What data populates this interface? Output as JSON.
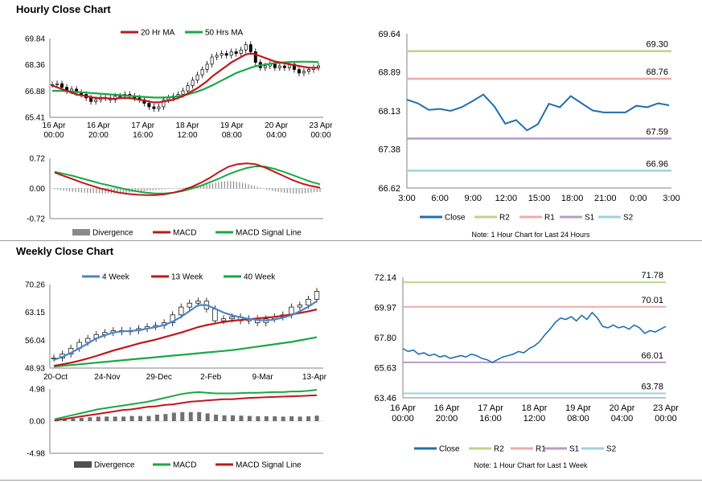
{
  "colors": {
    "red": "#c0171c",
    "green": "#19a845",
    "blue": "#1f6fb0",
    "gray": "#8a8a8a",
    "r2": "#bcd48a",
    "r1": "#f0aaaa",
    "s1": "#b89cc8",
    "s2": "#9cd2dc"
  },
  "hourly": {
    "title": "Hourly Close Chart",
    "price": {
      "legend": [
        "20 Hr MA",
        "50 Hrs MA"
      ],
      "y_ticks": [
        "69.84",
        "68.36",
        "66.88",
        "65.41"
      ],
      "y_min": 65.41,
      "y_max": 69.84,
      "x_tick_labels": [
        [
          "16 Apr",
          "00:00"
        ],
        [
          "16 Apr",
          "20:00"
        ],
        [
          "17 Apr",
          "16:00"
        ],
        [
          "18 Apr",
          "12:00"
        ],
        [
          "19 Apr",
          "08:00"
        ],
        [
          "20 Apr",
          "04:00"
        ],
        [
          "23 Apr",
          "00:00"
        ]
      ],
      "close": [
        67.25,
        67.3,
        67.1,
        66.9,
        67.0,
        66.8,
        66.7,
        66.5,
        66.3,
        66.4,
        66.5,
        66.5,
        66.4,
        66.6,
        66.6,
        66.7,
        66.6,
        66.5,
        66.4,
        66.2,
        66.0,
        65.9,
        66.0,
        66.4,
        66.5,
        66.6,
        66.7,
        66.9,
        67.2,
        67.5,
        67.8,
        68.1,
        68.4,
        68.8,
        68.9,
        69.0,
        68.9,
        69.1,
        69.0,
        69.2,
        69.5,
        69.1,
        68.5,
        68.2,
        68.3,
        68.4,
        68.2,
        68.3,
        68.2,
        68.4,
        68.1,
        67.9,
        68.0,
        68.1,
        68.2,
        68.3
      ],
      "ma20": [
        67.2,
        67.1,
        67.0,
        66.9,
        66.8,
        66.7,
        66.65,
        66.6,
        66.55,
        66.5,
        66.5,
        66.5,
        66.45,
        66.45,
        66.5,
        66.5,
        66.5,
        66.45,
        66.4,
        66.35,
        66.3,
        66.25,
        66.25,
        66.3,
        66.35,
        66.4,
        66.5,
        66.6,
        66.75,
        66.9,
        67.05,
        67.25,
        67.45,
        67.7,
        67.9,
        68.1,
        68.3,
        68.5,
        68.65,
        68.8,
        68.95,
        69.0,
        68.95,
        68.85,
        68.75,
        68.65,
        68.55,
        68.5,
        68.45,
        68.4,
        68.35,
        68.3,
        68.25,
        68.2,
        68.2,
        68.2
      ],
      "ma50": [
        66.9,
        66.9,
        66.9,
        66.88,
        66.86,
        66.84,
        66.82,
        66.8,
        66.78,
        66.76,
        66.74,
        66.72,
        66.7,
        66.68,
        66.66,
        66.64,
        66.62,
        66.6,
        66.58,
        66.56,
        66.54,
        66.52,
        66.52,
        66.52,
        66.54,
        66.56,
        66.6,
        66.64,
        66.7,
        66.78,
        66.86,
        66.96,
        67.08,
        67.2,
        67.34,
        67.48,
        67.62,
        67.76,
        67.9,
        68.0,
        68.1,
        68.2,
        68.28,
        68.34,
        68.38,
        68.42,
        68.45,
        68.48,
        68.5,
        68.52,
        68.53,
        68.54,
        68.54,
        68.54,
        68.53,
        68.52
      ]
    },
    "macd": {
      "legend": [
        "Divergence",
        "MACD",
        "MACD Signal Line"
      ],
      "y_ticks": [
        "0.72",
        "0.00",
        "-0.72"
      ],
      "y_min": -0.72,
      "y_max": 0.72,
      "macd": [
        0.38,
        0.3,
        0.22,
        0.14,
        0.07,
        0.0,
        -0.05,
        -0.1,
        -0.13,
        -0.15,
        -0.16,
        -0.16,
        -0.14,
        -0.1,
        -0.04,
        0.04,
        0.14,
        0.26,
        0.4,
        0.52,
        0.58,
        0.6,
        0.58,
        0.5,
        0.4,
        0.3,
        0.2,
        0.12,
        0.06,
        0.02
      ],
      "signal": [
        0.4,
        0.35,
        0.3,
        0.24,
        0.18,
        0.12,
        0.07,
        0.02,
        -0.03,
        -0.07,
        -0.1,
        -0.12,
        -0.12,
        -0.1,
        -0.06,
        0.0,
        0.07,
        0.15,
        0.24,
        0.34,
        0.42,
        0.49,
        0.53,
        0.52,
        0.47,
        0.4,
        0.32,
        0.24,
        0.16,
        0.1
      ],
      "divergence": [
        -0.02,
        -0.05,
        -0.08,
        -0.1,
        -0.11,
        -0.12,
        -0.12,
        -0.12,
        -0.1,
        -0.08,
        -0.06,
        -0.04,
        -0.02,
        0.0,
        0.02,
        0.04,
        0.07,
        0.11,
        0.16,
        0.18,
        0.16,
        0.11,
        0.05,
        -0.02,
        -0.07,
        -0.1,
        -0.12,
        -0.12,
        -0.1,
        -0.08
      ]
    },
    "pivot": {
      "y_ticks": [
        "69.64",
        "68.89",
        "68.13",
        "67.38",
        "66.62"
      ],
      "y_min": 66.62,
      "y_max": 69.64,
      "x_ticks": [
        "3:00",
        "6:00",
        "9:00",
        "12:00",
        "15:00",
        "18:00",
        "21:00",
        "0:00",
        "3:00"
      ],
      "levels": [
        {
          "name": "R2",
          "value": 69.3,
          "label": "69.30"
        },
        {
          "name": "R1",
          "value": 68.76,
          "label": "68.76"
        },
        {
          "name": "S1",
          "value": 67.59,
          "label": "67.59"
        },
        {
          "name": "S2",
          "value": 66.96,
          "label": "66.96"
        }
      ],
      "close": [
        68.35,
        68.28,
        68.15,
        68.17,
        68.13,
        68.2,
        68.32,
        68.45,
        68.22,
        67.88,
        67.95,
        67.75,
        67.87,
        68.27,
        68.2,
        68.42,
        68.28,
        68.14,
        68.1,
        68.1,
        68.1,
        68.23,
        68.2,
        68.28,
        68.24
      ],
      "legend": [
        "Close",
        "R2",
        "R1",
        "S1",
        "S2"
      ],
      "note": "Note: 1 Hour Chart for Last 24 Hours"
    }
  },
  "weekly": {
    "title": "Weekly Close Chart",
    "price": {
      "legend": [
        "4 Week",
        "13 Week",
        "40 Week"
      ],
      "y_ticks": [
        "70.26",
        "63.15",
        "56.04",
        "48.93"
      ],
      "y_min": 48.93,
      "y_max": 70.26,
      "x_tick_labels": [
        "20-Oct",
        "24-Nov",
        "29-Dec",
        "2-Feb",
        "9-Mar",
        "13-Apr"
      ],
      "close": [
        51.5,
        52.5,
        54.0,
        55.5,
        56.5,
        57.5,
        58.0,
        58.5,
        58.2,
        58.5,
        59.0,
        59.5,
        59.8,
        60.5,
        62.5,
        64.5,
        65.5,
        66.0,
        64.0,
        61.0,
        61.5,
        62.0,
        61.0,
        61.5,
        60.5,
        61.5,
        62.0,
        62.5,
        64.5,
        65.0,
        66.5,
        68.5
      ],
      "ma4": [
        51.0,
        51.8,
        52.8,
        54.0,
        55.2,
        56.5,
        57.3,
        58.0,
        58.3,
        58.4,
        58.6,
        59.0,
        59.4,
        59.9,
        60.8,
        62.0,
        63.5,
        65.0,
        65.0,
        64.1,
        63.1,
        62.4,
        61.9,
        61.5,
        61.2,
        61.1,
        61.3,
        61.8,
        62.4,
        63.4,
        64.6,
        66.0
      ],
      "ma13": [
        49.5,
        49.9,
        50.3,
        50.8,
        51.4,
        52.0,
        52.7,
        53.4,
        54.0,
        54.6,
        55.2,
        55.7,
        56.2,
        56.8,
        57.4,
        58.0,
        58.7,
        59.4,
        59.9,
        60.3,
        60.7,
        61.0,
        61.2,
        61.4,
        61.6,
        61.8,
        62.0,
        62.3,
        62.6,
        63.0,
        63.4,
        63.9
      ],
      "ma40": [
        49.3,
        49.5,
        49.7,
        49.9,
        50.1,
        50.3,
        50.5,
        50.7,
        50.9,
        51.1,
        51.3,
        51.5,
        51.7,
        51.9,
        52.1,
        52.3,
        52.5,
        52.7,
        52.9,
        53.1,
        53.3,
        53.5,
        53.8,
        54.1,
        54.4,
        54.7,
        55.0,
        55.3,
        55.6,
        56.0,
        56.4,
        56.8
      ]
    },
    "macd": {
      "legend": [
        "Divergence",
        "MACD",
        "MACD Signal Line"
      ],
      "y_ticks": [
        "4.98",
        "0.00",
        "-4.98"
      ],
      "y_min": -4.98,
      "y_max": 4.98,
      "macd": [
        0.3,
        0.6,
        0.9,
        1.2,
        1.5,
        1.8,
        2.0,
        2.2,
        2.4,
        2.6,
        2.8,
        3.0,
        3.3,
        3.6,
        3.9,
        4.2,
        4.4,
        4.5,
        4.4,
        4.3,
        4.3,
        4.3,
        4.35,
        4.4,
        4.4,
        4.45,
        4.5,
        4.5,
        4.6,
        4.6,
        4.7,
        4.85
      ],
      "signal": [
        0.1,
        0.3,
        0.5,
        0.7,
        0.9,
        1.1,
        1.3,
        1.5,
        1.7,
        1.8,
        2.0,
        2.2,
        2.3,
        2.5,
        2.6,
        2.8,
        3.0,
        3.1,
        3.2,
        3.3,
        3.4,
        3.4,
        3.5,
        3.6,
        3.65,
        3.7,
        3.75,
        3.8,
        3.85,
        3.9,
        3.95,
        4.0
      ],
      "divergence": [
        0.2,
        0.3,
        0.4,
        0.5,
        0.6,
        0.7,
        0.7,
        0.7,
        0.7,
        0.8,
        0.8,
        0.8,
        1.0,
        1.1,
        1.3,
        1.4,
        1.4,
        1.4,
        1.2,
        1.0,
        0.9,
        0.9,
        0.85,
        0.8,
        0.75,
        0.75,
        0.75,
        0.7,
        0.75,
        0.7,
        0.75,
        0.85
      ]
    },
    "pivot": {
      "y_ticks": [
        "72.14",
        "69.97",
        "67.80",
        "65.63",
        "63.46"
      ],
      "y_min": 63.46,
      "y_max": 72.14,
      "x_tick_labels": [
        [
          "16 Apr",
          "00:00"
        ],
        [
          "16 Apr",
          "20:00"
        ],
        [
          "17 Apr",
          "16:00"
        ],
        [
          "18 Apr",
          "12:00"
        ],
        [
          "19 Apr",
          "08:00"
        ],
        [
          "20 Apr",
          "04:00"
        ],
        [
          "23 Apr",
          "00:00"
        ]
      ],
      "levels": [
        {
          "name": "R2",
          "value": 71.78,
          "label": "71.78"
        },
        {
          "name": "R1",
          "value": 70.01,
          "label": "70.01"
        },
        {
          "name": "S1",
          "value": 66.01,
          "label": "66.01"
        },
        {
          "name": "S2",
          "value": 63.78,
          "label": "63.78"
        }
      ],
      "close": [
        67.0,
        66.8,
        66.9,
        66.6,
        66.7,
        66.5,
        66.6,
        66.4,
        66.5,
        66.3,
        66.4,
        66.5,
        66.4,
        66.6,
        66.5,
        66.3,
        66.2,
        66.0,
        66.2,
        66.4,
        66.5,
        66.6,
        66.8,
        66.7,
        67.0,
        67.2,
        67.5,
        68.0,
        68.4,
        68.9,
        69.2,
        69.1,
        69.3,
        69.0,
        69.4,
        69.1,
        69.6,
        69.2,
        68.6,
        68.5,
        68.7,
        68.5,
        68.6,
        68.4,
        68.7,
        68.5,
        68.1,
        68.3,
        68.2,
        68.4,
        68.6
      ],
      "legend": [
        "Close",
        "R2",
        "R1",
        "S1",
        "S2"
      ],
      "note": "Note: 1 Hour Chart for Last 1 Week"
    }
  }
}
